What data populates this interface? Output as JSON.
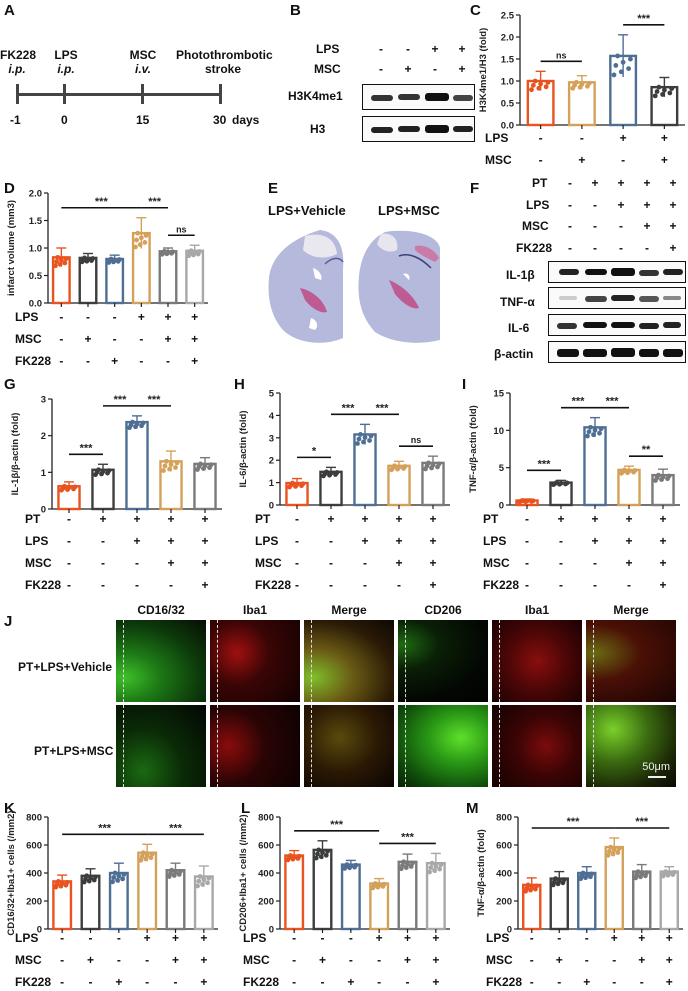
{
  "panels": {
    "A": {
      "label": "A",
      "timeline": {
        "events": [
          {
            "name": "FK228",
            "route": "i.p.",
            "day": "-1"
          },
          {
            "name": "LPS",
            "route": "i.p.",
            "day": "0"
          },
          {
            "name": "MSC",
            "route": "i.v.",
            "day": "15"
          },
          {
            "name": "Photothrombotic",
            "route": "stroke",
            "day": "30"
          }
        ],
        "unit": "days"
      }
    },
    "B": {
      "label": "B",
      "conditions": [
        {
          "name": "LPS",
          "values": [
            "-",
            "-",
            "+",
            "+"
          ]
        },
        {
          "name": "MSC",
          "values": [
            "-",
            "+",
            "-",
            "+"
          ]
        }
      ],
      "blots": [
        "H3K4me1",
        "H3"
      ]
    },
    "C": {
      "label": "C"
    },
    "D": {
      "label": "D"
    },
    "E": {
      "label": "E",
      "images": [
        "LPS+Vehicle",
        "LPS+MSC"
      ]
    },
    "F": {
      "label": "F",
      "conditions": [
        {
          "name": "PT",
          "values": [
            "-",
            "+",
            "+",
            "+",
            "+"
          ]
        },
        {
          "name": "LPS",
          "values": [
            "-",
            "-",
            "+",
            "+",
            "+"
          ]
        },
        {
          "name": "MSC",
          "values": [
            "-",
            "-",
            "-",
            "+",
            "+"
          ]
        },
        {
          "name": "FK228",
          "values": [
            "-",
            "-",
            "-",
            "-",
            "+"
          ]
        }
      ],
      "blots": [
        "IL-1β",
        "TNF-α",
        "IL-6",
        "β-actin"
      ]
    },
    "G": {
      "label": "G"
    },
    "H": {
      "label": "H"
    },
    "I": {
      "label": "I"
    },
    "J": {
      "label": "J",
      "columns": [
        "CD16/32",
        "Iba1",
        "Merge",
        "CD206",
        "Iba1",
        "Merge"
      ],
      "rows": [
        "PT+LPS+Vehicle",
        "PT+LPS+MSC"
      ],
      "scale_bar": "50μm"
    },
    "K": {
      "label": "K"
    },
    "L": {
      "label": "L"
    },
    "M": {
      "label": "M"
    }
  },
  "colors": {
    "orange_red": "#E8531F",
    "dark_gray": "#3D3D3D",
    "steel_blue": "#4E6E94",
    "gold": "#D4A15A",
    "mid_gray": "#7A7A7A",
    "light_gray": "#A8A8A8"
  },
  "chart_data": [
    {
      "id": "C",
      "type": "bar",
      "ylabel": "H3K4me1/H3 (fold)",
      "ylim": [
        0,
        2.5
      ],
      "yticks": [
        0.0,
        0.5,
        1.0,
        1.5,
        2.0,
        2.5
      ],
      "categories": [
        "LPS-/MSC-",
        "LPS-/MSC+",
        "LPS+/MSC-",
        "LPS+/MSC+"
      ],
      "values": [
        1.0,
        0.97,
        1.57,
        0.86
      ],
      "errors": [
        0.22,
        0.15,
        0.48,
        0.22
      ],
      "colors": [
        "#E8531F",
        "#D4A15A",
        "#4E6E94",
        "#3D3D3D"
      ],
      "conditions": [
        {
          "name": "LPS",
          "values": [
            "-",
            "-",
            "+",
            "+"
          ]
        },
        {
          "name": "MSC",
          "values": [
            "-",
            "+",
            "-",
            "+"
          ]
        }
      ],
      "significance": [
        {
          "from": 0,
          "to": 1,
          "label": "ns"
        },
        {
          "from": 2,
          "to": 3,
          "label": "***"
        }
      ]
    },
    {
      "id": "D",
      "type": "bar",
      "ylabel": "infarct volume (mm3)",
      "ylim": [
        0,
        2.0
      ],
      "yticks": [
        0.0,
        0.5,
        1.0,
        1.5,
        2.0
      ],
      "categories": [
        "1",
        "2",
        "3",
        "4",
        "5",
        "6"
      ],
      "values": [
        0.83,
        0.82,
        0.8,
        1.27,
        0.94,
        0.95
      ],
      "errors": [
        0.17,
        0.08,
        0.07,
        0.28,
        0.06,
        0.1
      ],
      "colors": [
        "#E8531F",
        "#3D3D3D",
        "#4E6E94",
        "#D4A15A",
        "#7A7A7A",
        "#A8A8A8"
      ],
      "conditions": [
        {
          "name": "LPS",
          "values": [
            "-",
            "-",
            "-",
            "+",
            "+",
            "+"
          ]
        },
        {
          "name": "MSC",
          "values": [
            "-",
            "+",
            "-",
            "-",
            "+",
            "+"
          ]
        },
        {
          "name": "FK228",
          "values": [
            "-",
            "-",
            "+",
            "-",
            "-",
            "+"
          ]
        }
      ],
      "significance": [
        {
          "from": 0,
          "to": 3,
          "label": "***"
        },
        {
          "from": 3,
          "to": 4,
          "label": "***"
        },
        {
          "from": 4,
          "to": 5,
          "label": "ns"
        }
      ]
    },
    {
      "id": "G",
      "type": "bar",
      "ylabel": "IL-1β/β-actin (fold)",
      "ylim": [
        0,
        3
      ],
      "yticks": [
        0,
        1,
        2,
        3
      ],
      "categories": [
        "1",
        "2",
        "3",
        "4",
        "5"
      ],
      "values": [
        0.62,
        1.07,
        2.37,
        1.3,
        1.23
      ],
      "errors": [
        0.12,
        0.15,
        0.17,
        0.28,
        0.17
      ],
      "colors": [
        "#E8531F",
        "#3D3D3D",
        "#4E6E94",
        "#D4A15A",
        "#7A7A7A"
      ],
      "conditions": [
        {
          "name": "PT",
          "values": [
            "-",
            "+",
            "+",
            "+",
            "+"
          ]
        },
        {
          "name": "LPS",
          "values": [
            "-",
            "-",
            "+",
            "+",
            "+"
          ]
        },
        {
          "name": "MSC",
          "values": [
            "-",
            "-",
            "-",
            "+",
            "+"
          ]
        },
        {
          "name": "FK228",
          "values": [
            "-",
            "-",
            "-",
            "-",
            "+"
          ]
        }
      ],
      "significance": [
        {
          "from": 0,
          "to": 1,
          "label": "***"
        },
        {
          "from": 1,
          "to": 2,
          "label": "***"
        },
        {
          "from": 2,
          "to": 3,
          "label": "***"
        }
      ]
    },
    {
      "id": "H",
      "type": "bar",
      "ylabel": "IL-6/β-actin (fold)",
      "ylim": [
        0,
        5
      ],
      "yticks": [
        0,
        1,
        2,
        3,
        4,
        5
      ],
      "categories": [
        "1",
        "2",
        "3",
        "4",
        "5"
      ],
      "values": [
        0.98,
        1.48,
        3.15,
        1.75,
        1.88
      ],
      "errors": [
        0.2,
        0.2,
        0.45,
        0.2,
        0.3
      ],
      "colors": [
        "#E8531F",
        "#3D3D3D",
        "#4E6E94",
        "#D4A15A",
        "#7A7A7A"
      ],
      "conditions": [
        {
          "name": "PT",
          "values": [
            "-",
            "+",
            "+",
            "+",
            "+"
          ]
        },
        {
          "name": "LPS",
          "values": [
            "-",
            "-",
            "+",
            "+",
            "+"
          ]
        },
        {
          "name": "MSC",
          "values": [
            "-",
            "-",
            "-",
            "+",
            "+"
          ]
        },
        {
          "name": "FK228",
          "values": [
            "-",
            "-",
            "-",
            "-",
            "+"
          ]
        }
      ],
      "significance": [
        {
          "from": 0,
          "to": 1,
          "label": "*"
        },
        {
          "from": 1,
          "to": 2,
          "label": "***"
        },
        {
          "from": 2,
          "to": 3,
          "label": "***"
        },
        {
          "from": 3,
          "to": 4,
          "label": "ns"
        }
      ]
    },
    {
      "id": "I",
      "type": "bar",
      "ylabel": "TNF-α/β-actin (fold)",
      "ylim": [
        0,
        15
      ],
      "yticks": [
        0,
        5,
        10,
        15
      ],
      "categories": [
        "1",
        "2",
        "3",
        "4",
        "5"
      ],
      "values": [
        0.6,
        3.0,
        10.4,
        4.7,
        4.0
      ],
      "errors": [
        0.2,
        0.3,
        1.3,
        0.5,
        0.8
      ],
      "colors": [
        "#E8531F",
        "#3D3D3D",
        "#4E6E94",
        "#D4A15A",
        "#7A7A7A"
      ],
      "conditions": [
        {
          "name": "PT",
          "values": [
            "-",
            "+",
            "+",
            "+",
            "+"
          ]
        },
        {
          "name": "LPS",
          "values": [
            "-",
            "-",
            "+",
            "+",
            "+"
          ]
        },
        {
          "name": "MSC",
          "values": [
            "-",
            "-",
            "-",
            "+",
            "+"
          ]
        },
        {
          "name": "FK228",
          "values": [
            "-",
            "-",
            "-",
            "-",
            "+"
          ]
        }
      ],
      "significance": [
        {
          "from": 0,
          "to": 1,
          "label": "***"
        },
        {
          "from": 1,
          "to": 2,
          "label": "***"
        },
        {
          "from": 2,
          "to": 3,
          "label": "***"
        },
        {
          "from": 3,
          "to": 4,
          "label": "**"
        }
      ]
    },
    {
      "id": "K",
      "type": "bar",
      "ylabel": "CD16/32+Iba1+ cells (/mm2)",
      "ylim": [
        0,
        800
      ],
      "yticks": [
        0,
        200,
        400,
        600,
        800
      ],
      "categories": [
        "1",
        "2",
        "3",
        "4",
        "5",
        "6"
      ],
      "values": [
        340,
        380,
        400,
        545,
        420,
        375
      ],
      "errors": [
        45,
        50,
        70,
        60,
        50,
        75
      ],
      "colors": [
        "#E8531F",
        "#3D3D3D",
        "#4E6E94",
        "#D4A15A",
        "#7A7A7A",
        "#A8A8A8"
      ],
      "conditions": [
        {
          "name": "LPS",
          "values": [
            "-",
            "-",
            "-",
            "+",
            "+",
            "+"
          ]
        },
        {
          "name": "MSC",
          "values": [
            "-",
            "+",
            "-",
            "-",
            "+",
            "+"
          ]
        },
        {
          "name": "FK228",
          "values": [
            "-",
            "-",
            "+",
            "-",
            "-",
            "+"
          ]
        }
      ],
      "significance": [
        {
          "from": 0,
          "to": 3,
          "label": "***"
        },
        {
          "from": 3,
          "to": 5,
          "label": "***"
        }
      ]
    },
    {
      "id": "L",
      "type": "bar",
      "ylabel": "CD206+Iba1+ cells (/mm2)",
      "ylim": [
        0,
        800
      ],
      "yticks": [
        0,
        200,
        400,
        600,
        800
      ],
      "categories": [
        "1",
        "2",
        "3",
        "4",
        "5",
        "6"
      ],
      "values": [
        525,
        565,
        460,
        325,
        480,
        470
      ],
      "errors": [
        35,
        65,
        30,
        35,
        55,
        70
      ],
      "colors": [
        "#E8531F",
        "#3D3D3D",
        "#4E6E94",
        "#D4A15A",
        "#7A7A7A",
        "#A8A8A8"
      ],
      "conditions": [
        {
          "name": "LPS",
          "values": [
            "-",
            "-",
            "-",
            "+",
            "+",
            "+"
          ]
        },
        {
          "name": "MSC",
          "values": [
            "-",
            "+",
            "-",
            "-",
            "+",
            "+"
          ]
        },
        {
          "name": "FK228",
          "values": [
            "-",
            "-",
            "+",
            "-",
            "-",
            "+"
          ]
        }
      ],
      "significance": [
        {
          "from": 0,
          "to": 3,
          "label": "***"
        },
        {
          "from": 3,
          "to": 5,
          "label": "***"
        }
      ]
    },
    {
      "id": "M",
      "type": "bar",
      "ylabel": "TNF-α/β-actin (fold)",
      "ylim": [
        0,
        800
      ],
      "yticks": [
        0,
        200,
        400,
        600,
        800
      ],
      "categories": [
        "1",
        "2",
        "3",
        "4",
        "5",
        "6"
      ],
      "values": [
        315,
        360,
        400,
        585,
        410,
        410
      ],
      "errors": [
        50,
        50,
        45,
        65,
        50,
        35
      ],
      "colors": [
        "#E8531F",
        "#3D3D3D",
        "#4E6E94",
        "#D4A15A",
        "#7A7A7A",
        "#A8A8A8"
      ],
      "conditions": [
        {
          "name": "LPS",
          "values": [
            "-",
            "-",
            "-",
            "+",
            "+",
            "+"
          ]
        },
        {
          "name": "MSC",
          "values": [
            "-",
            "+",
            "-",
            "-",
            "+",
            "+"
          ]
        },
        {
          "name": "FK228",
          "values": [
            "-",
            "-",
            "+",
            "-",
            "-",
            "+"
          ]
        }
      ],
      "significance": [
        {
          "from": 0,
          "to": 3,
          "label": "***"
        },
        {
          "from": 3,
          "to": 5,
          "label": "***"
        }
      ]
    }
  ]
}
